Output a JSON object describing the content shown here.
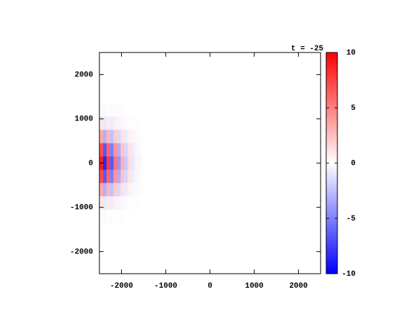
{
  "chart_data": {
    "type": "heatmap",
    "annotation": "t = -25",
    "x": [
      -2460,
      -2380,
      -2300,
      -2220,
      -2140,
      -2060,
      -1980,
      -1900,
      -1820,
      -1740,
      -1660,
      -1580
    ],
    "y": [
      1200,
      900,
      600,
      300,
      0,
      -300,
      -600,
      -900,
      -1200
    ],
    "z": [
      [
        0.2,
        -0.2,
        0.1,
        -0.1,
        0.1,
        -0.1,
        0.1,
        0,
        0,
        0,
        0,
        0
      ],
      [
        0.9,
        -0.9,
        0.8,
        -0.7,
        0.6,
        -0.4,
        0.3,
        -0.2,
        0.1,
        -0.1,
        0.1,
        0
      ],
      [
        3.3,
        -3.1,
        2.8,
        -2.4,
        2.0,
        -1.5,
        1.1,
        -0.8,
        0.5,
        -0.3,
        0.2,
        -0.1
      ],
      [
        6.9,
        -6.6,
        6.0,
        -5.1,
        4.2,
        -3.2,
        2.4,
        -1.6,
        1.1,
        -0.7,
        0.4,
        -0.2
      ],
      [
        8.9,
        -8.5,
        7.7,
        -6.6,
        5.4,
        -4.1,
        3.1,
        -2.1,
        1.4,
        -0.9,
        0.5,
        -0.3
      ],
      [
        6.9,
        -6.6,
        6.0,
        -5.1,
        4.2,
        -3.2,
        2.4,
        -1.6,
        1.1,
        -0.7,
        0.4,
        -0.2
      ],
      [
        3.3,
        -3.1,
        2.8,
        -2.4,
        2.0,
        -1.5,
        1.1,
        -0.8,
        0.5,
        -0.3,
        0.2,
        -0.1
      ],
      [
        0.9,
        -0.9,
        0.8,
        -0.7,
        0.6,
        -0.4,
        0.3,
        -0.2,
        0.1,
        -0.1,
        0.1,
        0
      ],
      [
        0.2,
        -0.2,
        0.1,
        -0.1,
        0.1,
        -0.1,
        0.1,
        0,
        0,
        0,
        0,
        0
      ]
    ],
    "cell_size": [
      80,
      300
    ],
    "xlim": [
      -2500,
      2500
    ],
    "ylim": [
      -2500,
      2500
    ],
    "xticks": [
      -2000,
      -1000,
      0,
      1000,
      2000
    ],
    "yticks": [
      -2000,
      -1000,
      0,
      1000,
      2000
    ],
    "zlim": [
      -10,
      10
    ],
    "zticks": [
      -10,
      -5,
      0,
      5,
      10
    ],
    "colormap": [
      "#0000ff",
      "#ffffff",
      "#ff0000"
    ]
  }
}
